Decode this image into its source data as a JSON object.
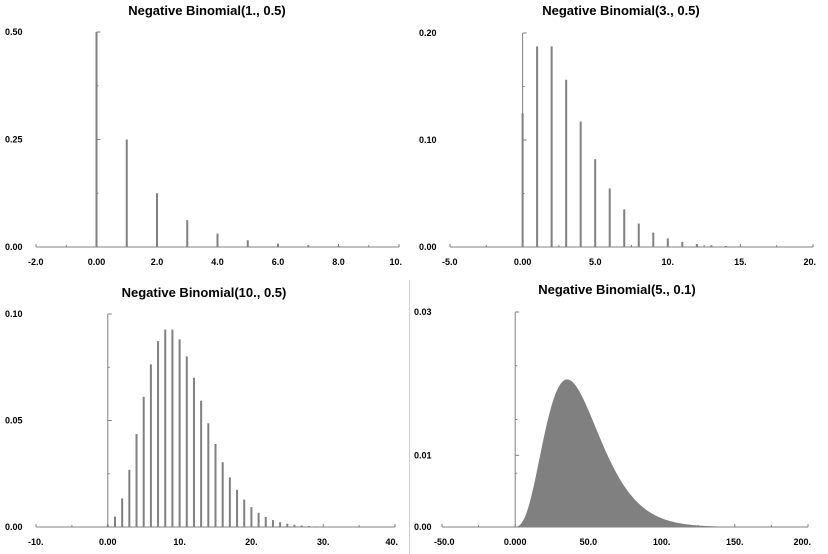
{
  "chart_data": [
    {
      "type": "bar",
      "title": "Negative Binomial(1., 0.5)",
      "xlabel": "",
      "ylabel": "",
      "xlim": [
        -2.0,
        10.0
      ],
      "ylim": [
        0,
        0.5
      ],
      "xticks": [
        -2.0,
        0.0,
        2.0,
        4.0,
        6.0,
        8.0,
        10.0
      ],
      "xtick_labels": [
        "-2.0",
        "0.00",
        "2.0",
        "4.0",
        "6.0",
        "8.0",
        "10."
      ],
      "yticks": [
        0,
        0.25,
        0.5
      ],
      "ytick_labels": [
        "0.00",
        "0.25",
        "0.50"
      ],
      "x": [
        0,
        1,
        2,
        3,
        4,
        5,
        6,
        7,
        8,
        9,
        10
      ],
      "values": [
        0.5,
        0.25,
        0.125,
        0.0625,
        0.03125,
        0.015625,
        0.0078125,
        0.00390625,
        0.001953,
        0.000977,
        0.000488
      ],
      "grid": false,
      "color": "#808080"
    },
    {
      "type": "bar",
      "title": "Negative Binomial(3., 0.5)",
      "xlabel": "",
      "ylabel": "",
      "xlim": [
        -5.0,
        20.0
      ],
      "ylim": [
        0,
        0.2
      ],
      "xticks": [
        -5.0,
        0.0,
        5.0,
        10.0,
        15.0,
        20.0
      ],
      "xtick_labels": [
        "-5.0",
        "0.00",
        "5.0",
        "10.",
        "15.",
        "20."
      ],
      "yticks": [
        0,
        0.1,
        0.2
      ],
      "ytick_labels": [
        "0.00",
        "0.10",
        "0.20"
      ],
      "x": [
        0,
        1,
        2,
        3,
        4,
        5,
        6,
        7,
        8,
        9,
        10,
        11,
        12,
        13,
        14,
        15,
        16,
        17,
        18,
        19,
        20
      ],
      "values": [
        0.125,
        0.1875,
        0.1875,
        0.15625,
        0.117188,
        0.082031,
        0.054688,
        0.035156,
        0.021973,
        0.013428,
        0.008057,
        0.004761,
        0.002777,
        0.001602,
        0.000916,
        0.000519,
        0.000292,
        0.000164,
        9.1e-05,
        5e-05,
        2.8e-05
      ],
      "grid": false,
      "color": "#808080"
    },
    {
      "type": "bar",
      "title": "Negative Binomial(10., 0.5)",
      "xlabel": "",
      "ylabel": "",
      "xlim": [
        -10.0,
        40.0
      ],
      "ylim": [
        0,
        0.1
      ],
      "xticks": [
        -10.0,
        0.0,
        10.0,
        20.0,
        30.0,
        40.0
      ],
      "xtick_labels": [
        "-10.",
        "0.00",
        "10.",
        "20.",
        "30.",
        "40."
      ],
      "yticks": [
        0,
        0.05,
        0.1
      ],
      "ytick_labels": [
        "0.00",
        "0.05",
        "0.10"
      ],
      "x": [
        0,
        1,
        2,
        3,
        4,
        5,
        6,
        7,
        8,
        9,
        10,
        11,
        12,
        13,
        14,
        15,
        16,
        17,
        18,
        19,
        20,
        21,
        22,
        23,
        24,
        25,
        26,
        27,
        28,
        29,
        30,
        31,
        32,
        33,
        34,
        35,
        36,
        37,
        38,
        39,
        40
      ],
      "values": [
        0.000977,
        0.004883,
        0.013428,
        0.026855,
        0.04364,
        0.061096,
        0.07637,
        0.08728,
        0.092735,
        0.092735,
        0.088099,
        0.08009,
        0.070078,
        0.059297,
        0.048709,
        0.038967,
        0.030443,
        0.023282,
        0.017461,
        0.012866,
        0.009328,
        0.006663,
        0.004694,
        0.003265,
        0.002245,
        0.001526,
        0.001027,
        0.000685,
        0.000453,
        0.000297,
        0.000193,
        0.000125,
        8e-05,
        5.1e-05,
        3.2e-05,
        2e-05,
        1.3e-05,
        8e-06,
        5e-06,
        3e-06,
        2e-06
      ],
      "grid": false,
      "color": "#808080"
    },
    {
      "type": "area",
      "title": "Negative Binomial(5., 0.1)",
      "xlabel": "",
      "ylabel": "",
      "xlim": [
        -50.0,
        200.0
      ],
      "ylim": [
        0,
        0.03
      ],
      "xticks": [
        -50.0,
        0.0,
        50.0,
        100.0,
        150.0,
        200.0
      ],
      "xtick_labels": [
        "-50.0",
        "0.000",
        "50.0",
        "100.",
        "150.",
        "200."
      ],
      "yticks": [
        0,
        0.01,
        0.03
      ],
      "ytick_labels": [
        "0.00",
        "0.01",
        "0.03"
      ],
      "distribution": {
        "r": 5,
        "p": 0.1,
        "x_min": 0,
        "x_max": 200
      },
      "grid": false,
      "color": "#808080"
    }
  ]
}
